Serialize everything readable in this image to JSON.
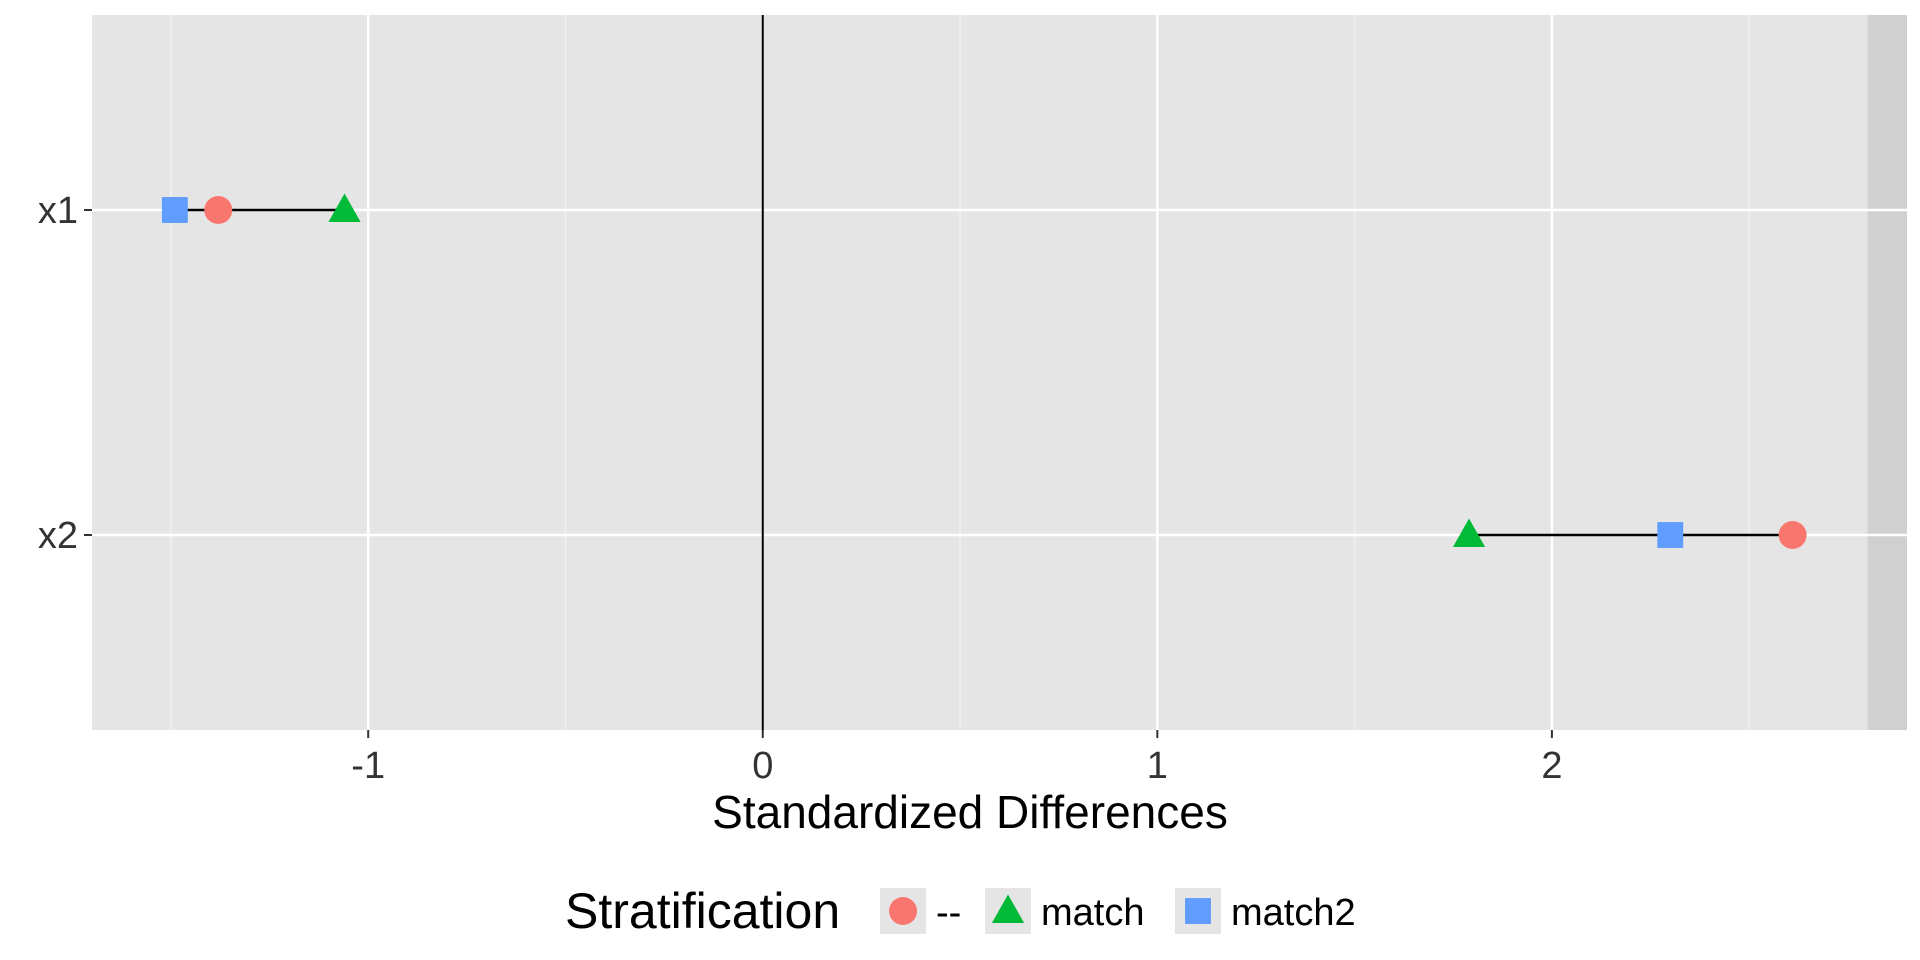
{
  "chart_data": {
    "type": "scatter",
    "title": "",
    "xlabel": "Standardized Differences",
    "ylabel": "",
    "xlim": [
      -1.7,
      2.9
    ],
    "x_ticks": [
      -1,
      0,
      1,
      2
    ],
    "x_tick_labels": [
      "-1",
      "0",
      "1",
      "2"
    ],
    "x_minor_ticks": [
      -1.5,
      -0.5,
      0.5,
      1.5,
      2.5
    ],
    "categories": [
      "x1",
      "x2"
    ],
    "reference_line_x": 0,
    "shaded_region_start_x": 2.8,
    "grid": true,
    "legend": {
      "title": "Stratification",
      "position": "bottom",
      "entries": [
        {
          "label": "--",
          "shape": "circle",
          "color": "#F8766D"
        },
        {
          "label": "match",
          "shape": "triangle",
          "color": "#00BA38"
        },
        {
          "label": "match2",
          "shape": "square",
          "color": "#619CFF"
        }
      ]
    },
    "series": [
      {
        "name": "--",
        "shape": "circle",
        "color": "#F8766D",
        "values": [
          -1.38,
          2.61
        ]
      },
      {
        "name": "match",
        "shape": "triangle",
        "color": "#00BA38",
        "values": [
          -1.06,
          1.79
        ]
      },
      {
        "name": "match2",
        "shape": "square",
        "color": "#619CFF",
        "values": [
          -1.49,
          2.3
        ]
      }
    ]
  }
}
